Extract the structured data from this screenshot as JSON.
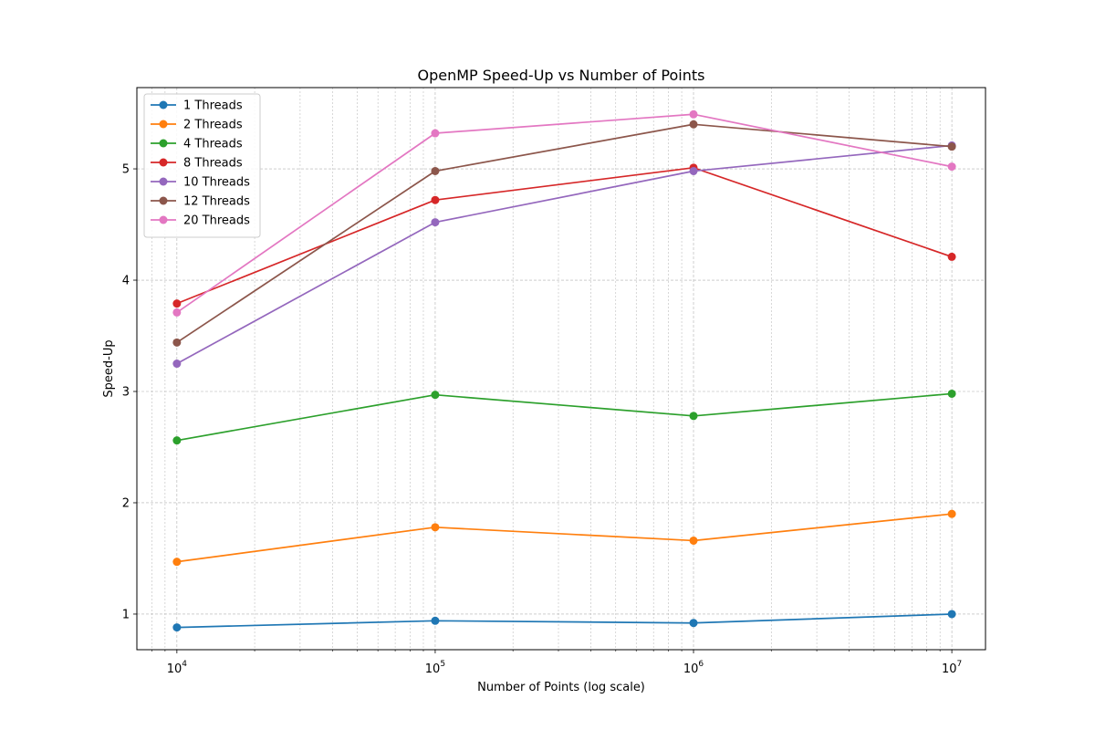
{
  "chart_data": {
    "type": "line",
    "title": "OpenMP Speed-Up vs Number of Points",
    "xlabel": "Number of Points (log scale)",
    "ylabel": "Speed-Up",
    "xscale": "log",
    "xlim": [
      7000,
      13500000
    ],
    "ylim": [
      0.68,
      5.73
    ],
    "x": [
      10000,
      100000,
      1000000,
      10000000
    ],
    "x_tick_labels": [
      {
        "base": "10",
        "exp": "4"
      },
      {
        "base": "10",
        "exp": "5"
      },
      {
        "base": "10",
        "exp": "6"
      },
      {
        "base": "10",
        "exp": "7"
      }
    ],
    "y_ticks": [
      1,
      2,
      3,
      4,
      5
    ],
    "grid": true,
    "legend_position": "top-left",
    "series": [
      {
        "name": "1 Threads",
        "color": "#1f77b4",
        "values": [
          0.88,
          0.94,
          0.92,
          1.0
        ]
      },
      {
        "name": "2 Threads",
        "color": "#ff7f0e",
        "values": [
          1.47,
          1.78,
          1.66,
          1.9
        ]
      },
      {
        "name": "4 Threads",
        "color": "#2ca02c",
        "values": [
          2.56,
          2.97,
          2.78,
          2.98
        ]
      },
      {
        "name": "8 Threads",
        "color": "#d62728",
        "values": [
          3.79,
          4.72,
          5.01,
          4.21
        ]
      },
      {
        "name": "10 Threads",
        "color": "#9467bd",
        "values": [
          3.25,
          4.52,
          4.98,
          5.21
        ]
      },
      {
        "name": "12 Threads",
        "color": "#8c564b",
        "values": [
          3.44,
          4.98,
          5.4,
          5.2
        ]
      },
      {
        "name": "20 Threads",
        "color": "#e377c2",
        "values": [
          3.71,
          5.32,
          5.49,
          5.02
        ]
      }
    ]
  }
}
